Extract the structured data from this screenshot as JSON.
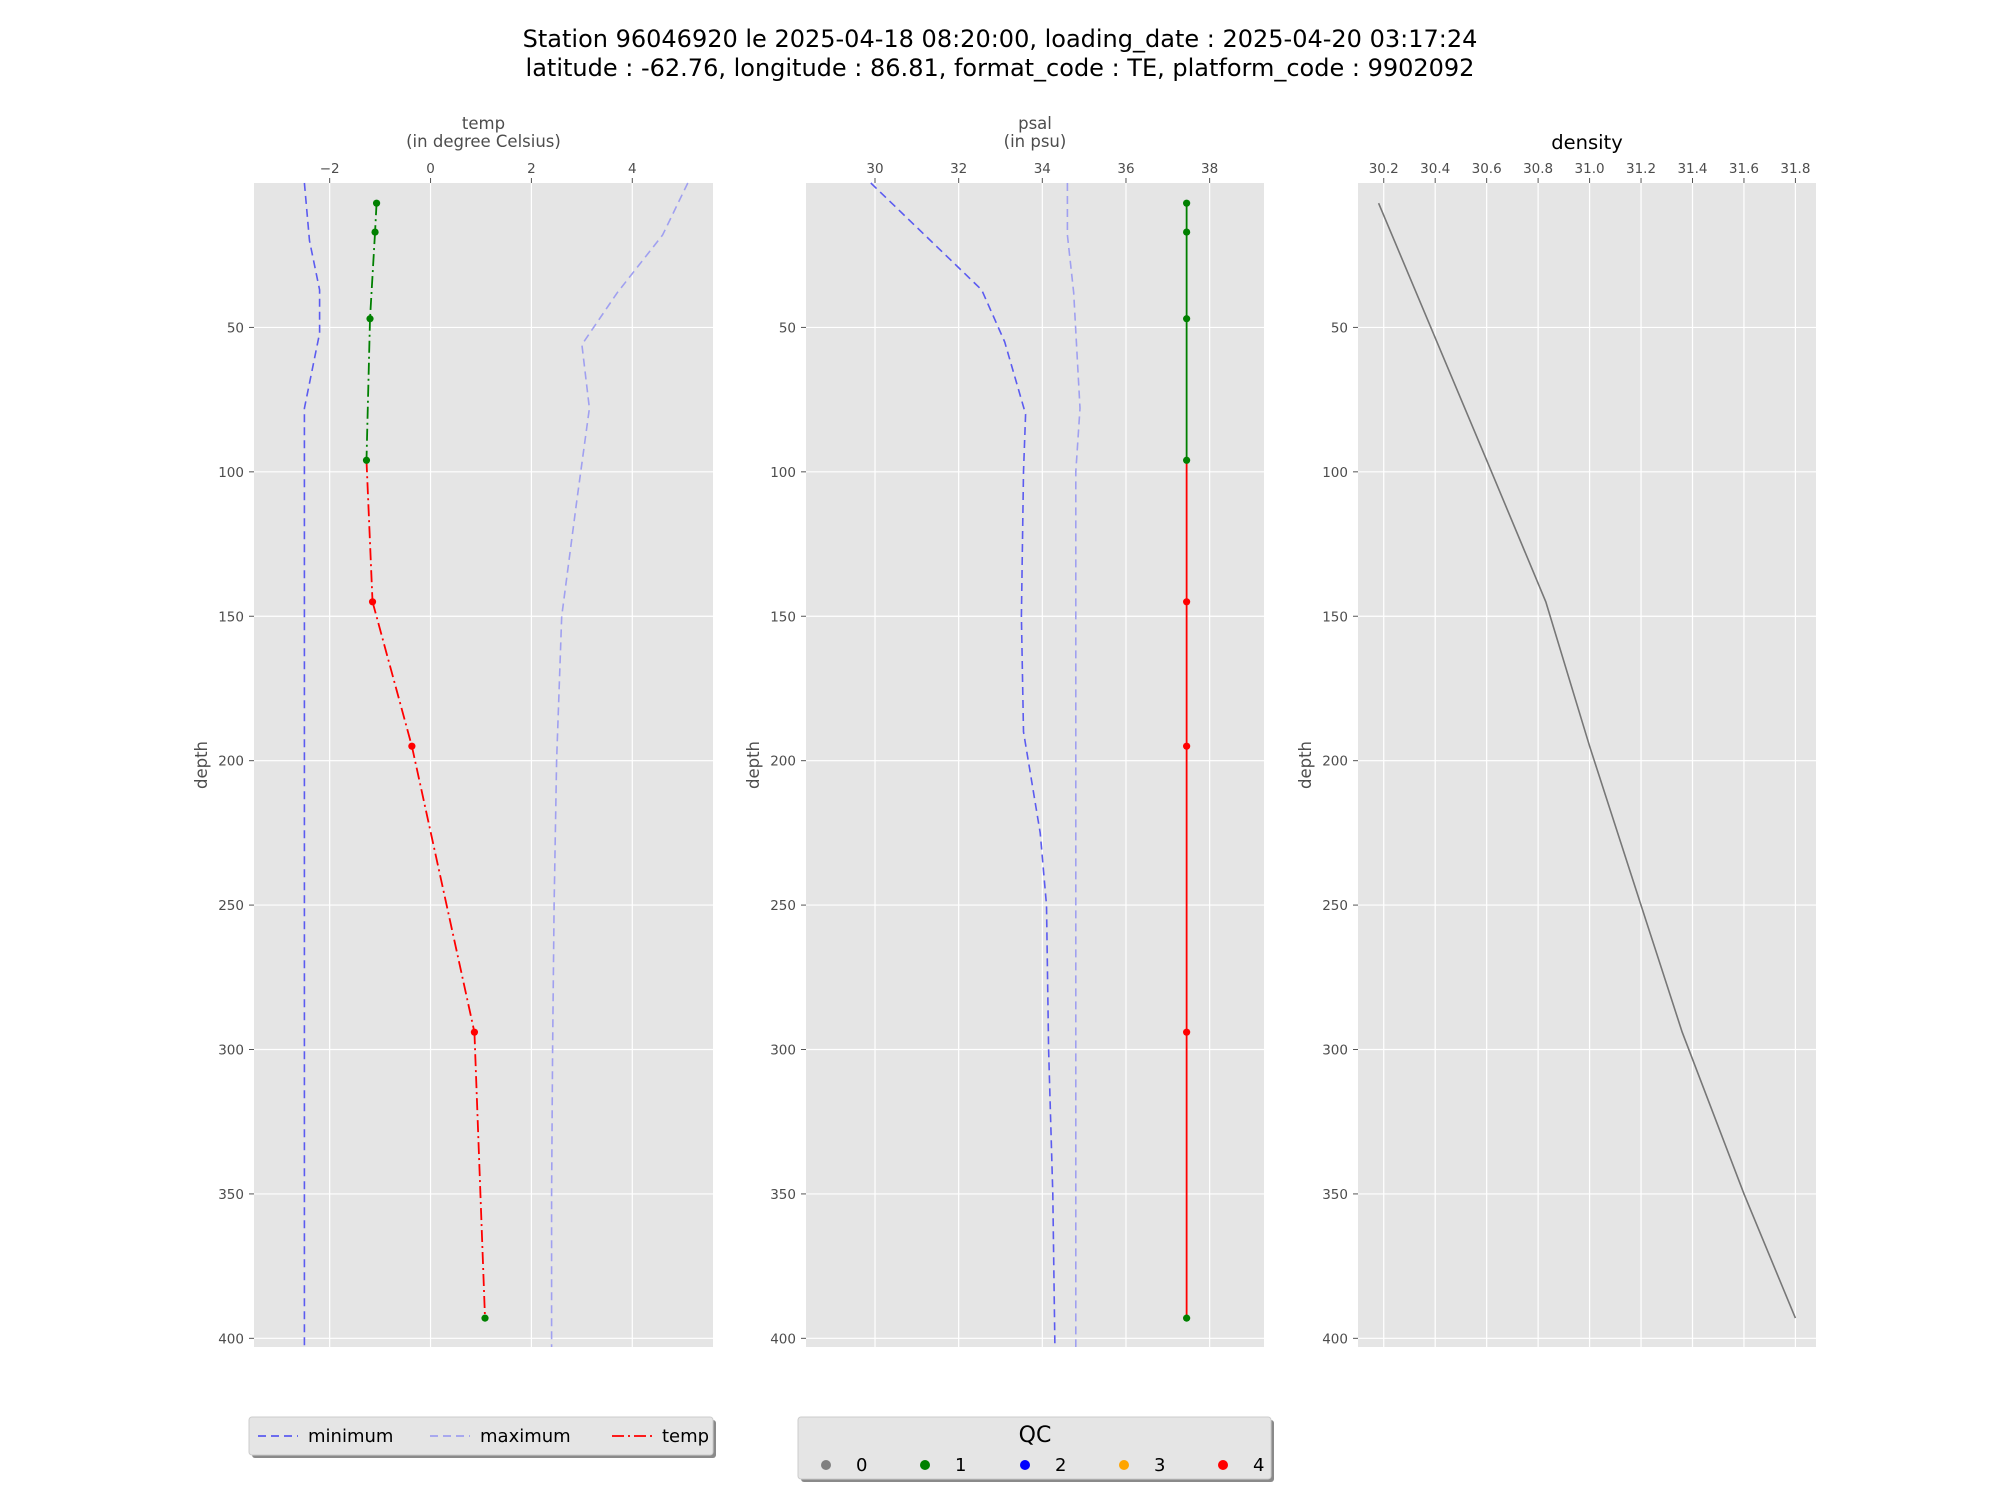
{
  "figure": {
    "title_line1": "Station 96046920 le 2025-04-18 08:20:00, loading_date : 2025-04-20 03:17:24",
    "title_line2": "latitude : -62.76, longitude : 86.81, format_code : TE, platform_code : 9902092"
  },
  "colors": {
    "background_panel": "#e5e5e5",
    "grid": "#ffffff",
    "minimum": "#5b5bf0",
    "maximum": "#a0a0f0",
    "temp_line": "#ff0000",
    "qc_0": "#808080",
    "qc_1": "#008000",
    "qc_2": "#0000ff",
    "qc_3": "#ffa500",
    "qc_4": "#ff0000",
    "density_line": "#777777"
  },
  "legend_main": {
    "items": [
      {
        "label": "minimum",
        "style": "dashed",
        "color": "#5b5bf0"
      },
      {
        "label": "maximum",
        "style": "dashed",
        "color": "#a0a0f0"
      },
      {
        "label": "temp",
        "style": "dashdot",
        "color": "#ff0000"
      }
    ]
  },
  "legend_qc": {
    "title": "QC",
    "items": [
      {
        "label": "0",
        "color": "#808080"
      },
      {
        "label": "1",
        "color": "#008000"
      },
      {
        "label": "2",
        "color": "#0000ff"
      },
      {
        "label": "3",
        "color": "#ffa500"
      },
      {
        "label": "4",
        "color": "#ff0000"
      }
    ]
  },
  "chart_data": [
    {
      "type": "line",
      "title": "",
      "xlabel": "temp\n(in degree Celsius)",
      "ylabel": "depth",
      "xlim": [
        -3.5,
        5.6
      ],
      "ylim": [
        403,
        0
      ],
      "xticks": [
        -2,
        0,
        2,
        4
      ],
      "xtick_labels": [
        "−2",
        "0",
        "2",
        "4"
      ],
      "yticks": [
        50,
        100,
        150,
        200,
        250,
        300,
        350,
        400
      ],
      "grid": true,
      "series": [
        {
          "name": "minimum",
          "style": "dashed",
          "x": [
            -2.5,
            -2.4,
            -2.2,
            -2.2,
            -2.5,
            -2.5,
            -2.5,
            -2.5,
            -2.5,
            -2.5,
            -2.5,
            -2.5
          ],
          "y": [
            0,
            20,
            37,
            52,
            78,
            100,
            150,
            200,
            250,
            300,
            350,
            403
          ]
        },
        {
          "name": "maximum",
          "style": "dashed",
          "x": [
            5.1,
            4.6,
            3.7,
            3.0,
            3.15,
            2.9,
            2.6,
            2.5,
            2.45,
            2.42,
            2.4,
            2.4
          ],
          "y": [
            0,
            18,
            38,
            56,
            78,
            110,
            150,
            200,
            250,
            300,
            350,
            403
          ]
        },
        {
          "name": "temp",
          "style": "dashdot",
          "x": [
            -1.07,
            -1.1,
            -1.2,
            -1.27,
            -1.15,
            -0.37,
            0.87,
            1.08
          ],
          "y": [
            7,
            17,
            47,
            96,
            145,
            195,
            294,
            393
          ],
          "qc": [
            1,
            1,
            1,
            1,
            4,
            4,
            4,
            1
          ]
        }
      ]
    },
    {
      "type": "line",
      "title": "",
      "xlabel": "psal\n(in psu)",
      "ylabel": "depth",
      "xlim": [
        28.35,
        39.3
      ],
      "ylim": [
        403,
        0
      ],
      "xticks": [
        30,
        32,
        34,
        36,
        38
      ],
      "xtick_labels": [
        "30",
        "32",
        "34",
        "36",
        "38"
      ],
      "yticks": [
        50,
        100,
        150,
        200,
        250,
        300,
        350,
        400
      ],
      "grid": true,
      "series": [
        {
          "name": "minimum",
          "style": "dashed",
          "x": [
            29.9,
            32.55,
            33.1,
            33.6,
            33.55,
            33.5,
            33.55,
            33.95,
            34.1,
            34.15,
            34.25,
            34.3
          ],
          "y": [
            0,
            37,
            55,
            80,
            100,
            150,
            190,
            225,
            250,
            300,
            350,
            403
          ]
        },
        {
          "name": "maximum",
          "style": "dashed",
          "x": [
            34.6,
            34.6,
            34.75,
            34.9,
            34.8,
            34.8,
            34.8,
            34.8,
            34.8,
            34.8,
            34.8,
            34.8
          ],
          "y": [
            0,
            18,
            38,
            78,
            100,
            150,
            200,
            250,
            300,
            350,
            400,
            403
          ]
        },
        {
          "name": "psal",
          "style": "solid",
          "x": [
            37.45,
            37.45,
            37.45,
            37.45,
            37.45,
            37.45,
            37.45,
            37.45
          ],
          "y": [
            7,
            17,
            47,
            96,
            145,
            195,
            294,
            393
          ],
          "qc": [
            1,
            1,
            1,
            1,
            4,
            4,
            4,
            1
          ]
        }
      ]
    },
    {
      "type": "line",
      "title": "density",
      "xlabel": "",
      "ylabel": "depth",
      "xlim": [
        30.1,
        31.88
      ],
      "ylim": [
        403,
        0
      ],
      "xticks": [
        30.2,
        30.4,
        30.6,
        30.8,
        31.0,
        31.2,
        31.4,
        31.6,
        31.8
      ],
      "xtick_labels": [
        "30.2",
        "30.4",
        "30.6",
        "30.8",
        "31.0",
        "31.2",
        "31.4",
        "31.6",
        "31.8"
      ],
      "yticks": [
        50,
        100,
        150,
        200,
        250,
        300,
        350,
        400
      ],
      "grid": true,
      "series": [
        {
          "name": "density",
          "style": "solid",
          "x": [
            30.18,
            30.6,
            30.83,
            31.0,
            31.2,
            31.36,
            31.6,
            31.8
          ],
          "y": [
            7,
            96,
            145,
            195,
            250,
            294,
            350,
            393
          ]
        }
      ]
    }
  ]
}
